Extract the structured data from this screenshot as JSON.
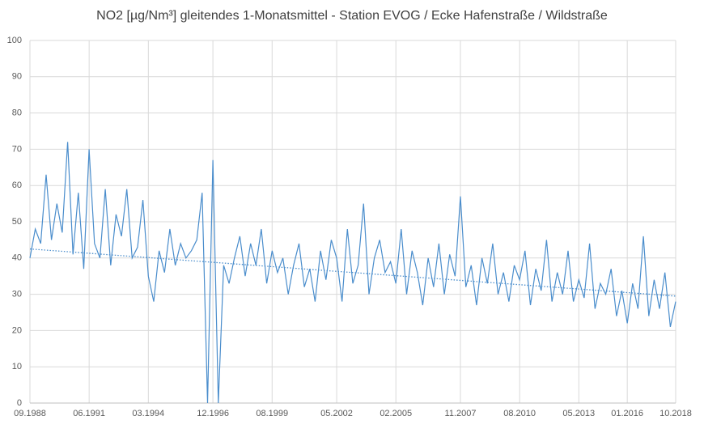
{
  "chart_data": {
    "type": "line",
    "title": "NO2 [µg/Nm³] gleitendes 1-Monatsmittel -  Station EVOG / Ecke Hafenstraße / Wildstraße",
    "categories": [
      "09.1988",
      null,
      null,
      null,
      null,
      null,
      null,
      null,
      null,
      null,
      null,
      "06.1991",
      null,
      null,
      null,
      null,
      null,
      null,
      null,
      null,
      null,
      null,
      "03.1994",
      null,
      null,
      null,
      null,
      null,
      null,
      null,
      null,
      null,
      null,
      null,
      "12.1996",
      null,
      null,
      null,
      null,
      null,
      null,
      null,
      null,
      null,
      null,
      "08.1999",
      null,
      null,
      null,
      null,
      null,
      null,
      null,
      null,
      null,
      null,
      null,
      "05.2002",
      null,
      null,
      null,
      null,
      null,
      null,
      null,
      null,
      null,
      null,
      "02.2005",
      null,
      null,
      null,
      null,
      null,
      null,
      null,
      null,
      null,
      null,
      null,
      "11.2007",
      null,
      null,
      null,
      null,
      null,
      null,
      null,
      null,
      null,
      null,
      "08.2010",
      null,
      null,
      null,
      null,
      null,
      null,
      null,
      null,
      null,
      null,
      "05.2013",
      null,
      null,
      null,
      null,
      null,
      null,
      null,
      null,
      "01.2016",
      null,
      null,
      null,
      null,
      null,
      null,
      null,
      null,
      "10.2018"
    ],
    "series": [
      {
        "name": "NO2",
        "color": "#4a8dcc",
        "values": [
          40,
          48,
          44,
          63,
          45,
          55,
          47,
          72,
          41,
          58,
          37,
          70,
          44,
          40,
          59,
          38,
          52,
          46,
          59,
          40,
          43,
          56,
          35,
          28,
          42,
          36,
          48,
          38,
          44,
          40,
          42,
          45,
          58,
          0,
          67,
          0,
          38,
          33,
          40,
          46,
          35,
          44,
          38,
          48,
          33,
          42,
          36,
          40,
          30,
          38,
          44,
          32,
          37,
          28,
          42,
          34,
          45,
          40,
          28,
          48,
          33,
          38,
          55,
          30,
          40,
          45,
          36,
          39,
          33,
          48,
          30,
          42,
          36,
          27,
          40,
          32,
          44,
          30,
          41,
          35,
          57,
          32,
          38,
          27,
          40,
          33,
          44,
          30,
          36,
          28,
          38,
          34,
          42,
          27,
          37,
          31,
          45,
          28,
          36,
          30,
          42,
          28,
          34,
          29,
          44,
          26,
          33,
          30,
          37,
          24,
          31,
          22,
          33,
          26,
          46,
          24,
          34,
          26,
          36,
          21,
          28
        ]
      }
    ],
    "trend": {
      "color": "#4a8dcc",
      "values": [
        42.5,
        29.5
      ]
    },
    "ylim": [
      0,
      100
    ],
    "yticks": [
      0,
      10,
      20,
      30,
      40,
      50,
      60,
      70,
      80,
      90,
      100
    ],
    "grid": true
  }
}
